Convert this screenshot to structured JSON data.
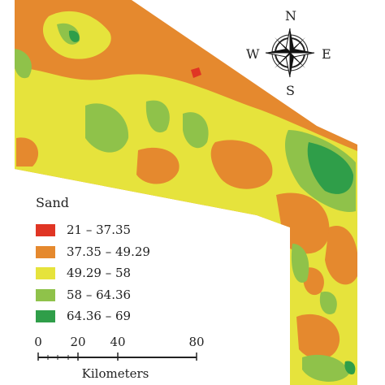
{
  "colors": {
    "class_1": "#e03524",
    "class_2": "#e5892e",
    "class_3": "#e6e33c",
    "class_4": "#8fc24a",
    "class_5": "#2f9e49"
  },
  "legend": {
    "title": "Sand",
    "items": [
      {
        "label": "21 – 37.35",
        "color": "#e03524"
      },
      {
        "label": "37.35 – 49.29",
        "color": "#e5892e"
      },
      {
        "label": "49.29 – 58",
        "color": "#e6e33c"
      },
      {
        "label": "58 – 64.36",
        "color": "#8fc24a"
      },
      {
        "label": "64.36 – 69",
        "color": "#2f9e49"
      }
    ]
  },
  "scale_bar": {
    "ticks": [
      "0",
      "20",
      "40",
      "80"
    ],
    "unit": "Kilometers"
  },
  "compass": {
    "north": "N",
    "south": "S",
    "east": "E",
    "west": "W"
  },
  "icons": {
    "compass": "compass-rose-icon"
  }
}
